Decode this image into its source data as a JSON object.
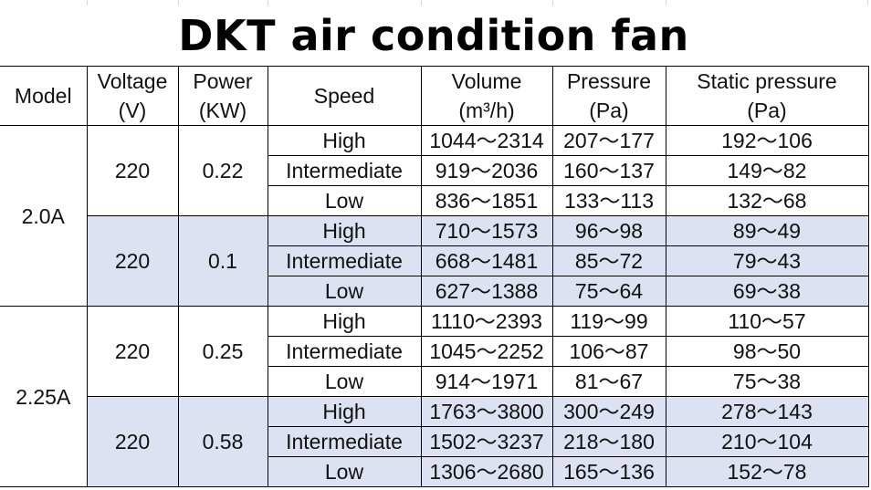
{
  "title": "DKT air condition fan",
  "headers": {
    "model": "Model",
    "voltage_l1": "Voltage",
    "voltage_l2": "(V)",
    "power_l1": "Power",
    "power_l2": "(KW)",
    "speed": "Speed",
    "volume_l1": "Volume",
    "volume_l2": "(m³/h)",
    "pressure_l1": "Pressure",
    "pressure_l2": "(Pa)",
    "static_l1": "Static pressure",
    "static_l2": "(Pa)"
  },
  "models": [
    {
      "name": "2.0A",
      "groups": [
        {
          "voltage": "220",
          "power": "0.22",
          "shaded": false,
          "rows": [
            {
              "speed": "High",
              "volume": "1044～2314",
              "pressure": "207～177",
              "static": "192～106"
            },
            {
              "speed": "Intermediate",
              "volume": "919～2036",
              "pressure": "160～137",
              "static": "149～82"
            },
            {
              "speed": "Low",
              "volume": "836～1851",
              "pressure": "133～113",
              "static": "132～68"
            }
          ]
        },
        {
          "voltage": "220",
          "power": "0.1",
          "shaded": true,
          "rows": [
            {
              "speed": "High",
              "volume": "710～1573",
              "pressure": "96～98",
              "static": "89～49"
            },
            {
              "speed": "Intermediate",
              "volume": "668～1481",
              "pressure": "85～72",
              "static": "79～43"
            },
            {
              "speed": "Low",
              "volume": "627～1388",
              "pressure": "75～64",
              "static": "69～38"
            }
          ]
        }
      ]
    },
    {
      "name": "2.25A",
      "groups": [
        {
          "voltage": "220",
          "power": "0.25",
          "shaded": false,
          "rows": [
            {
              "speed": "High",
              "volume": "1110～2393",
              "pressure": "119～99",
              "static": "110～57"
            },
            {
              "speed": "Intermediate",
              "volume": "1045～2252",
              "pressure": "106～87",
              "static": "98～50"
            },
            {
              "speed": "Low",
              "volume": "914～1971",
              "pressure": "81～67",
              "static": "75～38"
            }
          ]
        },
        {
          "voltage": "220",
          "power": "0.58",
          "shaded": true,
          "rows": [
            {
              "speed": "High",
              "volume": "1763～3800",
              "pressure": "300～249",
              "static": "278～143"
            },
            {
              "speed": "Intermediate",
              "volume": "1502～3237",
              "pressure": "218～180",
              "static": "210～104"
            },
            {
              "speed": "Low",
              "volume": "1306～2680",
              "pressure": "165～136",
              "static": "152～78"
            }
          ]
        }
      ]
    }
  ]
}
